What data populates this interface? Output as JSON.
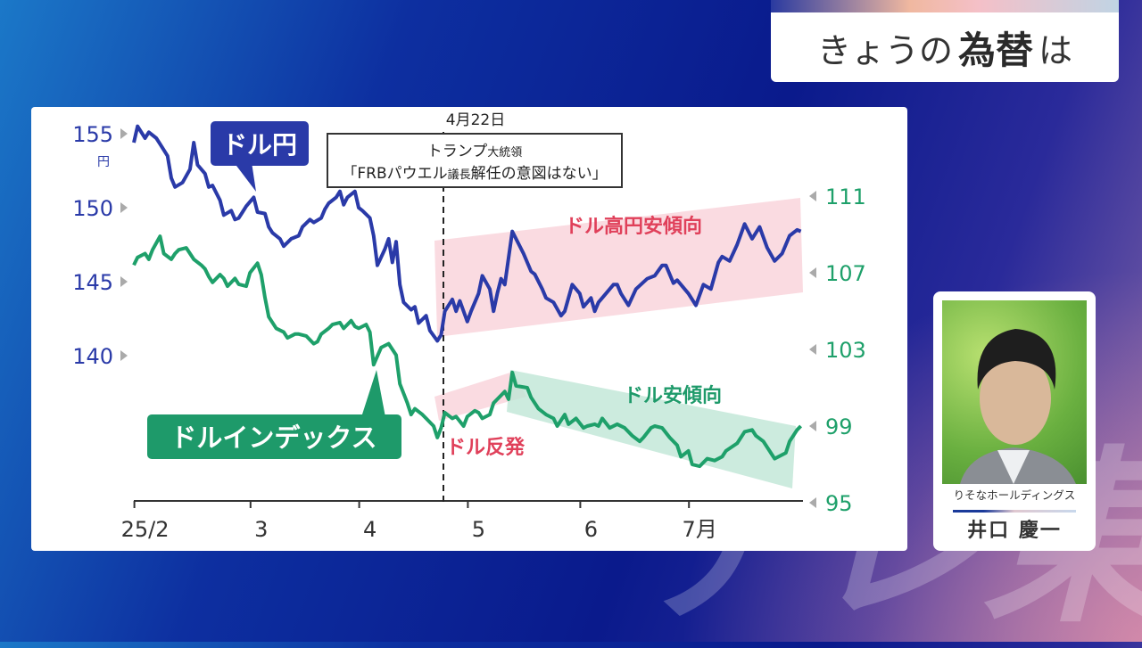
{
  "header": {
    "title_pre": "きょうの",
    "title_main": "為替",
    "title_post": "は"
  },
  "watermark": "テレ東",
  "guest": {
    "company": "りそなホールディングス",
    "name": "井口 慶一"
  },
  "colors": {
    "usdjpy": "#2a3aa8",
    "dxy": "#1ea06a",
    "red_note": "#e0405a"
  },
  "chart_data": {
    "type": "line",
    "x_unit": "trading day index (approx.)",
    "x_ticks": [
      {
        "label": "25/2",
        "x": 3
      },
      {
        "label": "3",
        "x": 34
      },
      {
        "label": "4",
        "x": 63
      },
      {
        "label": "5",
        "x": 92
      },
      {
        "label": "6",
        "x": 122
      },
      {
        "label": "7月",
        "x": 151
      }
    ],
    "y_left": {
      "ticks": [
        "155",
        "150",
        "145",
        "140"
      ],
      "unit": "円",
      "range": [
        140,
        155
      ]
    },
    "y_right": {
      "ticks": [
        "111",
        "107",
        "103",
        "99",
        "95"
      ],
      "range": [
        95,
        111
      ]
    },
    "event": {
      "date": "4月22日",
      "x": 83,
      "line1_main": "トランプ",
      "line1_small": "大統領",
      "line2_a": "「FRBパウエル",
      "line2_small": "議長",
      "line2_b": "解任の意図はない」"
    },
    "annotations": {
      "usd_strong": "ドル高円安傾向",
      "usd_weak": "ドル安傾向",
      "usd_rebound": "ドル反発"
    },
    "series": [
      {
        "name": "ドル円",
        "axis": "left",
        "points": [
          [
            0,
            154.4
          ],
          [
            1,
            155.5
          ],
          [
            3,
            154.7
          ],
          [
            4,
            155.1
          ],
          [
            6,
            154.7
          ],
          [
            7,
            154.3
          ],
          [
            9,
            153.5
          ],
          [
            10,
            152.0
          ],
          [
            11,
            151.4
          ],
          [
            13,
            151.7
          ],
          [
            15,
            152.6
          ],
          [
            16,
            154.4
          ],
          [
            17,
            152.9
          ],
          [
            19,
            152.3
          ],
          [
            20,
            151.4
          ],
          [
            21,
            151.5
          ],
          [
            23,
            150.5
          ],
          [
            24,
            149.5
          ],
          [
            26,
            149.8
          ],
          [
            27,
            149.2
          ],
          [
            28,
            149.3
          ],
          [
            29,
            149.7
          ],
          [
            30,
            150.1
          ],
          [
            32,
            150.7
          ],
          [
            33,
            149.7
          ],
          [
            35,
            149.6
          ],
          [
            36,
            148.7
          ],
          [
            37,
            148.3
          ],
          [
            39,
            147.9
          ],
          [
            40,
            147.4
          ],
          [
            42,
            147.9
          ],
          [
            44,
            148.1
          ],
          [
            45,
            148.7
          ],
          [
            47,
            149.2
          ],
          [
            48,
            149.0
          ],
          [
            50,
            149.3
          ],
          [
            51,
            149.9
          ],
          [
            52,
            150.3
          ],
          [
            54,
            150.7
          ],
          [
            55,
            151.1
          ],
          [
            56,
            150.2
          ],
          [
            57,
            150.7
          ],
          [
            59,
            151.1
          ],
          [
            60,
            150.0
          ],
          [
            61,
            149.8
          ],
          [
            63,
            149.3
          ],
          [
            64,
            148.1
          ],
          [
            65,
            146.1
          ],
          [
            67,
            147.2
          ],
          [
            68,
            147.9
          ],
          [
            69,
            146.3
          ],
          [
            70,
            147.7
          ],
          [
            71,
            144.8
          ],
          [
            72,
            143.6
          ],
          [
            74,
            143.1
          ],
          [
            75,
            143.3
          ],
          [
            76,
            142.2
          ],
          [
            78,
            142.7
          ],
          [
            79,
            141.7
          ],
          [
            81,
            141.0
          ],
          [
            82,
            141.4
          ],
          [
            83,
            143.0
          ],
          [
            85,
            143.8
          ],
          [
            86,
            143.0
          ],
          [
            87,
            143.7
          ],
          [
            89,
            142.3
          ],
          [
            90,
            143.0
          ],
          [
            92,
            144.2
          ],
          [
            93,
            145.4
          ],
          [
            95,
            144.5
          ],
          [
            96,
            143.0
          ],
          [
            97,
            144.2
          ],
          [
            98,
            145.2
          ],
          [
            99,
            144.8
          ],
          [
            101,
            148.4
          ],
          [
            104,
            146.9
          ],
          [
            106,
            145.7
          ],
          [
            107,
            145.5
          ],
          [
            109,
            144.5
          ],
          [
            110,
            143.9
          ],
          [
            112,
            143.6
          ],
          [
            114,
            142.7
          ],
          [
            115,
            143.0
          ],
          [
            117,
            144.8
          ],
          [
            119,
            144.2
          ],
          [
            120,
            143.3
          ],
          [
            122,
            143.9
          ],
          [
            123,
            143.0
          ],
          [
            124,
            143.6
          ],
          [
            126,
            144.2
          ],
          [
            128,
            144.8
          ],
          [
            129,
            144.8
          ],
          [
            130,
            144.2
          ],
          [
            132,
            143.4
          ],
          [
            134,
            144.5
          ],
          [
            137,
            145.2
          ],
          [
            139,
            145.4
          ],
          [
            141,
            146.1
          ],
          [
            142,
            146.1
          ],
          [
            144,
            144.9
          ],
          [
            145,
            145.1
          ],
          [
            147,
            144.5
          ],
          [
            148,
            144.2
          ],
          [
            150,
            143.4
          ],
          [
            152,
            144.8
          ],
          [
            154,
            144.5
          ],
          [
            156,
            146.3
          ],
          [
            157,
            146.7
          ],
          [
            159,
            146.4
          ],
          [
            161,
            147.5
          ],
          [
            163,
            148.9
          ],
          [
            165,
            147.9
          ],
          [
            167,
            148.7
          ],
          [
            169,
            147.3
          ],
          [
            171,
            146.4
          ],
          [
            173,
            146.9
          ],
          [
            175,
            148.1
          ],
          [
            177,
            148.5
          ],
          [
            178,
            148.4
          ]
        ]
      },
      {
        "name": "ドルインデックス",
        "axis": "right",
        "points": [
          [
            0,
            107.4
          ],
          [
            1,
            107.8
          ],
          [
            3,
            108.0
          ],
          [
            4,
            107.7
          ],
          [
            5,
            108.2
          ],
          [
            7,
            108.9
          ],
          [
            8,
            108.0
          ],
          [
            10,
            107.7
          ],
          [
            11,
            108.0
          ],
          [
            12,
            108.2
          ],
          [
            14,
            108.3
          ],
          [
            15,
            108.0
          ],
          [
            16,
            107.7
          ],
          [
            18,
            107.4
          ],
          [
            19,
            107.2
          ],
          [
            20,
            106.8
          ],
          [
            21,
            106.5
          ],
          [
            23,
            106.9
          ],
          [
            24,
            106.7
          ],
          [
            25,
            106.3
          ],
          [
            27,
            106.7
          ],
          [
            28,
            106.4
          ],
          [
            30,
            106.3
          ],
          [
            31,
            107.0
          ],
          [
            33,
            107.5
          ],
          [
            34,
            106.9
          ],
          [
            35,
            105.7
          ],
          [
            36,
            104.7
          ],
          [
            38,
            104.1
          ],
          [
            40,
            103.9
          ],
          [
            41,
            103.6
          ],
          [
            43,
            103.8
          ],
          [
            44,
            103.8
          ],
          [
            46,
            103.7
          ],
          [
            48,
            103.3
          ],
          [
            49,
            103.4
          ],
          [
            50,
            103.8
          ],
          [
            52,
            104.1
          ],
          [
            53,
            104.3
          ],
          [
            55,
            104.4
          ],
          [
            56,
            104.1
          ],
          [
            58,
            104.5
          ],
          [
            59,
            104.2
          ],
          [
            60,
            104.1
          ],
          [
            62,
            104.3
          ],
          [
            63,
            103.9
          ],
          [
            64,
            102.2
          ],
          [
            66,
            103.1
          ],
          [
            68,
            103.3
          ],
          [
            69,
            103.0
          ],
          [
            70,
            102.7
          ],
          [
            71,
            101.2
          ],
          [
            73,
            100.2
          ],
          [
            74,
            99.6
          ],
          [
            75,
            99.9
          ],
          [
            77,
            99.6
          ],
          [
            78,
            99.4
          ],
          [
            80,
            99.0
          ],
          [
            81,
            98.4
          ],
          [
            82,
            98.9
          ],
          [
            83,
            99.7
          ],
          [
            85,
            99.4
          ],
          [
            86,
            99.5
          ],
          [
            88,
            99.0
          ],
          [
            89,
            99.5
          ],
          [
            91,
            99.8
          ],
          [
            92,
            99.7
          ],
          [
            93,
            99.4
          ],
          [
            95,
            99.6
          ],
          [
            96,
            100.2
          ],
          [
            97,
            100.4
          ],
          [
            99,
            100.8
          ],
          [
            100,
            100.4
          ],
          [
            101,
            101.8
          ],
          [
            102,
            101.1
          ],
          [
            105,
            101.0
          ],
          [
            106,
            100.5
          ],
          [
            108,
            99.9
          ],
          [
            110,
            99.6
          ],
          [
            112,
            99.4
          ],
          [
            113,
            99.0
          ],
          [
            115,
            99.6
          ],
          [
            116,
            99.1
          ],
          [
            118,
            99.4
          ],
          [
            120,
            98.9
          ],
          [
            121,
            99.0
          ],
          [
            123,
            99.1
          ],
          [
            124,
            99.0
          ],
          [
            125,
            99.4
          ],
          [
            127,
            98.9
          ],
          [
            129,
            99.1
          ],
          [
            131,
            98.9
          ],
          [
            133,
            98.5
          ],
          [
            135,
            98.2
          ],
          [
            136,
            98.4
          ],
          [
            138,
            98.9
          ],
          [
            139,
            99.0
          ],
          [
            141,
            98.9
          ],
          [
            143,
            98.4
          ],
          [
            145,
            98.0
          ],
          [
            146,
            97.4
          ],
          [
            148,
            97.7
          ],
          [
            149,
            97.0
          ],
          [
            151,
            96.9
          ],
          [
            153,
            97.3
          ],
          [
            155,
            97.2
          ],
          [
            157,
            97.4
          ],
          [
            158,
            97.7
          ],
          [
            161,
            98.1
          ],
          [
            163,
            98.7
          ],
          [
            165,
            98.8
          ],
          [
            166,
            98.5
          ],
          [
            168,
            98.2
          ],
          [
            170,
            97.6
          ],
          [
            171,
            97.3
          ],
          [
            174,
            97.6
          ],
          [
            175,
            98.2
          ],
          [
            177,
            98.8
          ],
          [
            178,
            99.0
          ]
        ]
      }
    ]
  }
}
